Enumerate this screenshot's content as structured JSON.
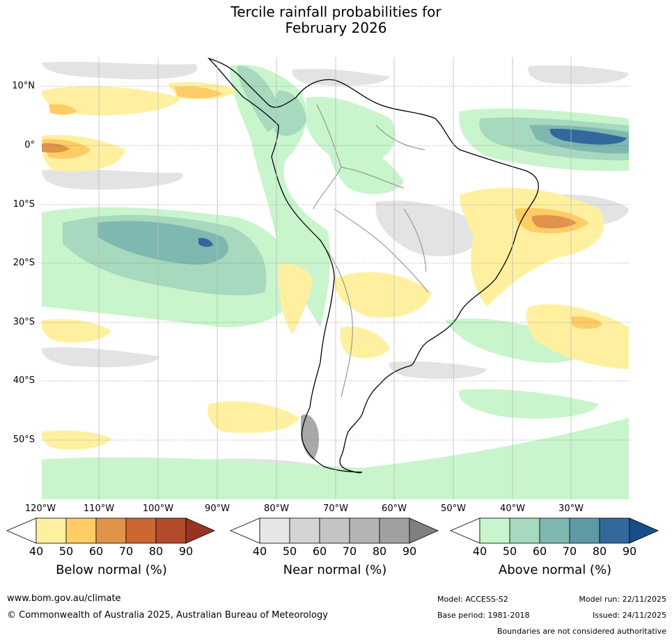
{
  "title": {
    "line1": "Tercile rainfall probabilities for",
    "line2": "February 2026"
  },
  "map": {
    "lat_labels": [
      "10°N",
      "0°",
      "10°S",
      "20°S",
      "30°S",
      "40°S",
      "50°S"
    ],
    "lon_labels": [
      "120°W",
      "110°W",
      "100°W",
      "90°W",
      "80°W",
      "70°W",
      "60°W",
      "50°W",
      "40°W",
      "30°W"
    ]
  },
  "legends": {
    "below": {
      "title": "Below normal (%)",
      "ticks": [
        "40",
        "50",
        "60",
        "70",
        "80",
        "90"
      ],
      "colors": [
        "#ffffff",
        "#fff0a0",
        "#ffcc66",
        "#e0934a",
        "#cc6633",
        "#b24b2a",
        "#993321"
      ]
    },
    "near": {
      "title": "Near normal (%)",
      "ticks": [
        "40",
        "50",
        "60",
        "70",
        "80",
        "90"
      ],
      "colors": [
        "#ffffff",
        "#e6e6e6",
        "#d4d4d4",
        "#c4c4c4",
        "#b4b4b4",
        "#a0a0a0",
        "#808080"
      ]
    },
    "above": {
      "title": "Above normal (%)",
      "ticks": [
        "40",
        "50",
        "60",
        "70",
        "80",
        "90"
      ],
      "colors": [
        "#ffffff",
        "#c8f5cc",
        "#a6d9bd",
        "#7fb8b0",
        "#5e9aa6",
        "#33689c",
        "#174e88"
      ]
    }
  },
  "footer": {
    "url": "www.bom.gov.au/climate",
    "copyright": "© Commonwealth of Australia 2025, Australian Bureau of Meteorology",
    "model": "Model: ACCESS-S2",
    "base_period": "Base period: 1981-2018",
    "model_run": "Model run: 22/11/2025",
    "issued": "Issued: 24/11/2025",
    "disclaimer": "Boundaries are not considered authoritative"
  }
}
